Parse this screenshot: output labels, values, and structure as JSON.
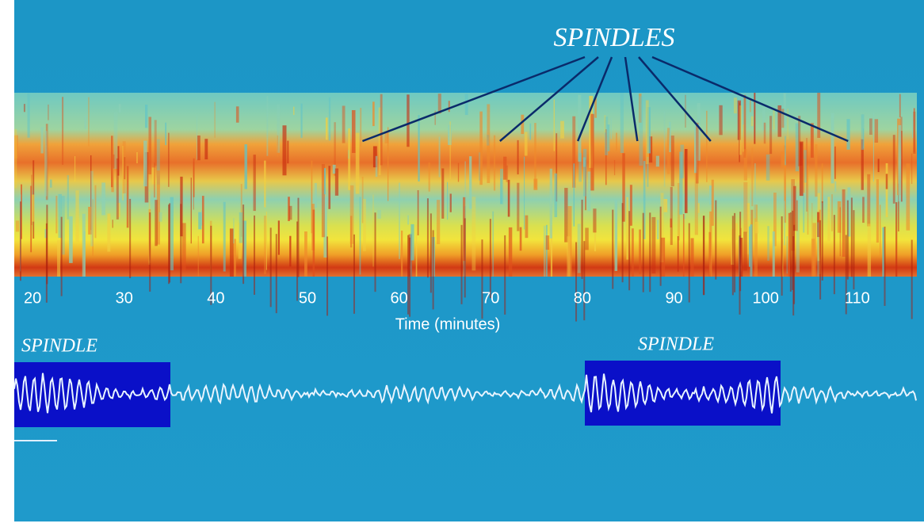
{
  "chart_data": {
    "type": "spectrogram",
    "annotation": "SPINDLES",
    "annotation_x": [
      56,
      71,
      79.5,
      86,
      94,
      109
    ],
    "xlabel": "Time (minutes)",
    "xlim": [
      18,
      116.5
    ],
    "xticks": [
      20,
      30,
      40,
      50,
      60,
      70,
      80,
      90,
      100,
      110
    ],
    "waveform_labels": [
      "SPINDLE",
      "SPINDLE"
    ]
  }
}
